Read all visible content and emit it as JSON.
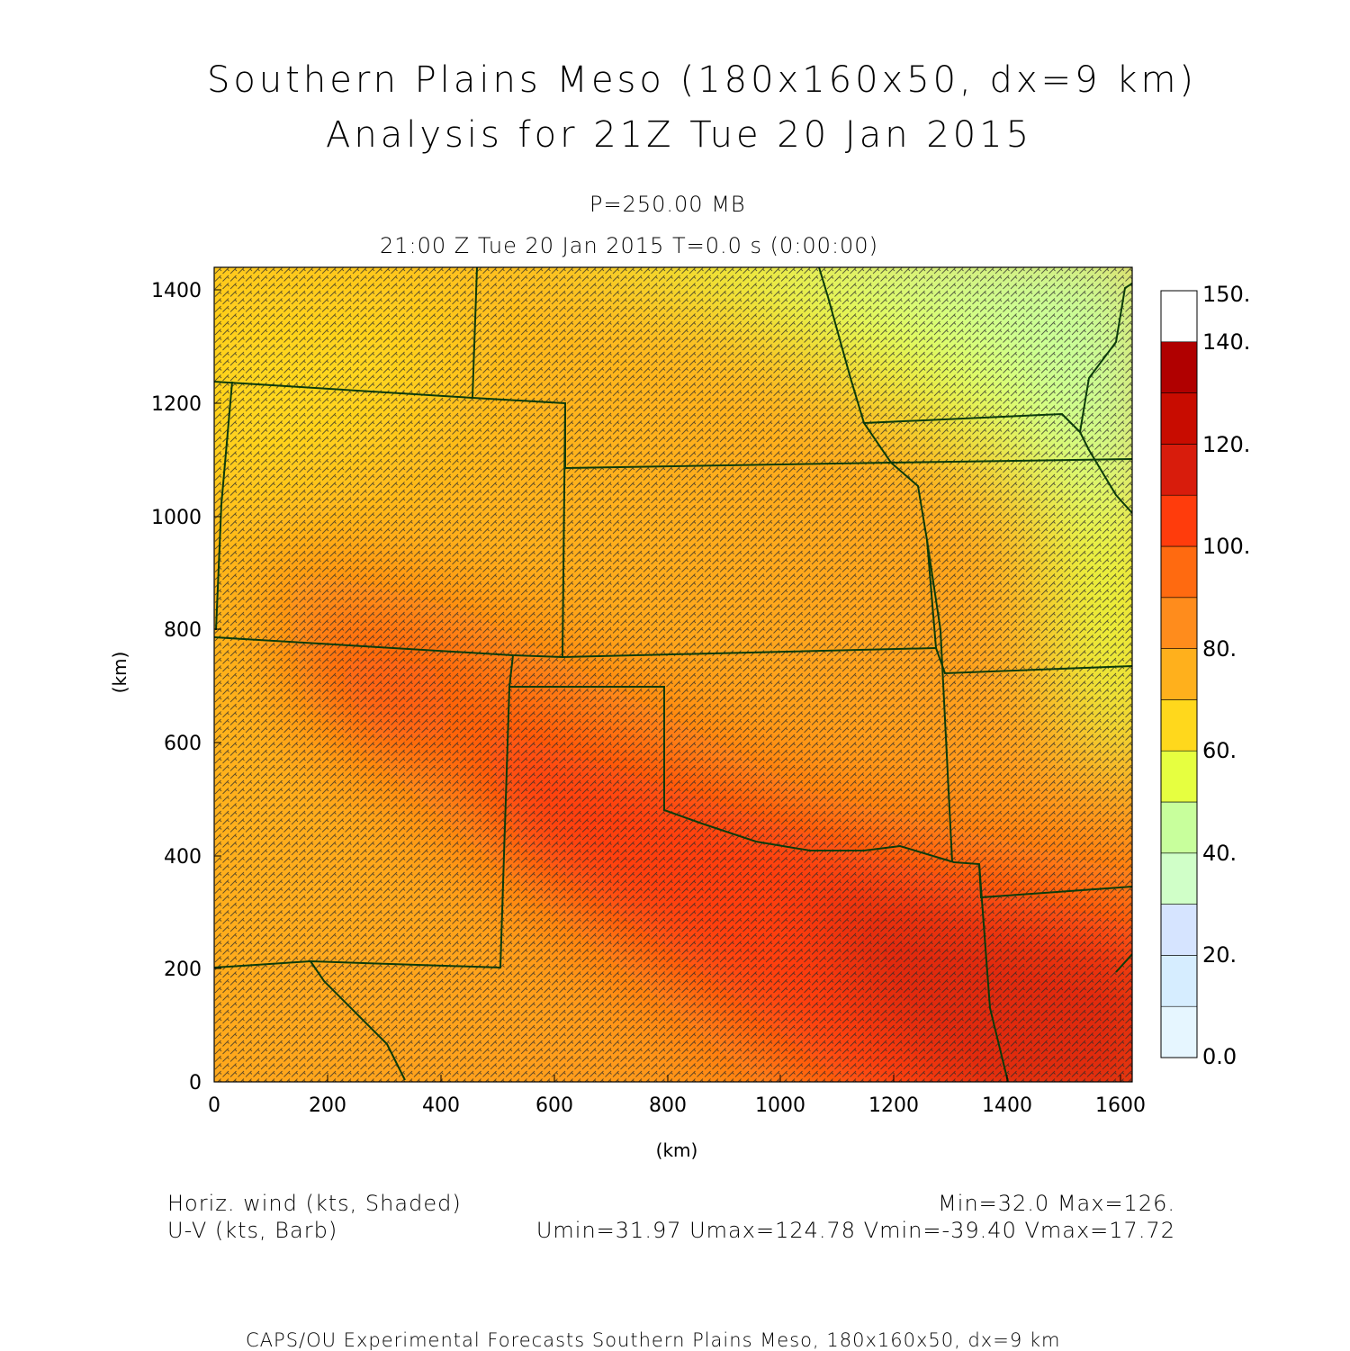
{
  "header": {
    "title_line1": "Southern Plains Meso (180x160x50, dx=9 km)",
    "title_line2": "Analysis for 21Z Tue 20 Jan 2015",
    "level": "P=250.00 MB",
    "valid_time": "21:00 Z Tue 20 Jan 2015    T=0.0 s (0:00:00)"
  },
  "axes": {
    "x_label": "(km)",
    "y_label": "(km)",
    "x_ticks": [
      "0",
      "200",
      "400",
      "600",
      "800",
      "1000",
      "1200",
      "1400",
      "1600"
    ],
    "y_ticks": [
      "0",
      "200",
      "400",
      "600",
      "800",
      "1000",
      "1200",
      "1400"
    ],
    "x_range_km": [
      0,
      1620
    ],
    "y_range_km": [
      0,
      1440
    ]
  },
  "colorbar": {
    "labels": [
      "150.",
      "140.",
      "120.",
      "100.",
      "80.",
      "60.",
      "40.",
      "20.",
      "0.0"
    ],
    "levels": [
      0,
      10,
      20,
      30,
      40,
      50,
      60,
      70,
      80,
      90,
      100,
      110,
      120,
      130,
      140,
      150
    ],
    "colors": [
      "#e6f6ff",
      "#d6edff",
      "#d6e4ff",
      "#d0ffc8",
      "#c8ff9c",
      "#e6ff40",
      "#ffd81c",
      "#ffb01c",
      "#ff8c1c",
      "#ff6a10",
      "#ff3c0c",
      "#d81c0c",
      "#c80c00",
      "#b00000"
    ]
  },
  "footer": {
    "field1": "Horiz. wind (kts, Shaded)",
    "field2": "U-V (kts, Barb)",
    "minmax": "Min=32.0 Max=126.",
    "uv_stats": "Umin=31.97  Umax=124.78  Vmin=-39.40  Vmax=17.72",
    "credit": "CAPS/OU Experimental Forecasts   Southern Plains Meso, 180x160x50, dx=9 km"
  },
  "map": {
    "border_color": "#0b3b0b",
    "barb_color": "#2a2a2a"
  }
}
